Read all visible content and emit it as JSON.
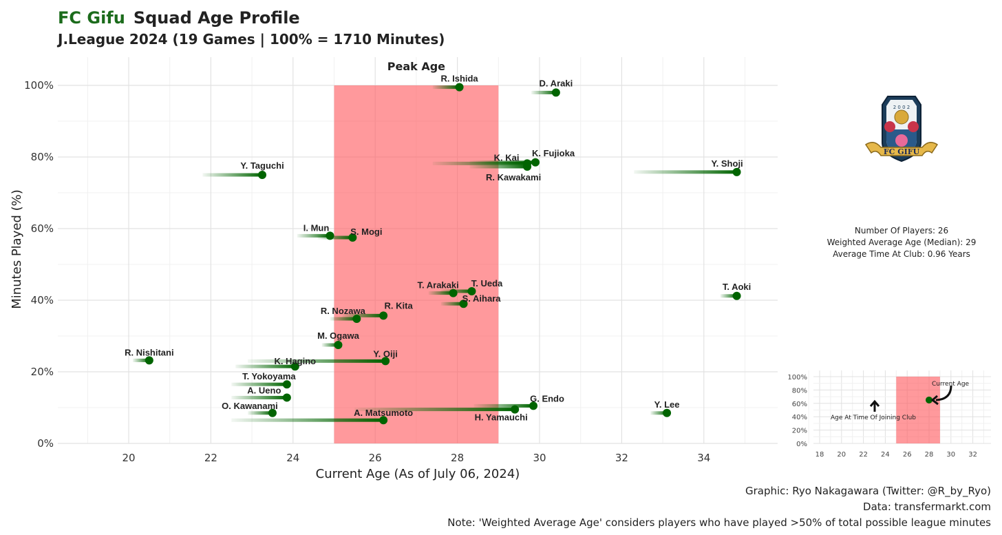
{
  "title": {
    "club": "FC Gifu",
    "text": "Squad Age Profile"
  },
  "subtitle": "J.League 2024 (19 Games | 100% = 1710 Minutes)",
  "peak_label": "Peak Age",
  "stats": {
    "num_players": "Number Of Players: 26",
    "weighted_avg": "Weighted Average Age (Median): 29",
    "avg_time": "Average Time At Club: 0.96 Years"
  },
  "caption": {
    "line1": "Graphic: Ryo Nakagawara (Twitter: @R_by_Ryo)",
    "line2": "Data: transfermarkt.com",
    "line3": "Note: 'Weighted Average Age' considers players who have played >50% of total possible league minutes"
  },
  "logo": {
    "text": "FC GIFU",
    "year": "2 0 0 2"
  },
  "colors": {
    "point": "#006400",
    "peak_band": "#ff5a5f",
    "club_title": "#1b6b1b"
  },
  "chart_data": {
    "type": "scatter",
    "xlabel": "Current Age (As of July 06, 2024)",
    "ylabel": "Minutes Played (%)",
    "xlim": [
      18.8,
      35.7
    ],
    "ylim": [
      0,
      100
    ],
    "xticks": [
      20,
      22,
      24,
      26,
      28,
      30,
      32,
      34
    ],
    "yticks": [
      0,
      20,
      40,
      60,
      80,
      100
    ],
    "ytick_labels": [
      "0%",
      "20%",
      "40%",
      "60%",
      "80%",
      "100%"
    ],
    "peak_age_range": [
      25,
      29
    ],
    "players": [
      {
        "name": "R. Ishida",
        "age": 28.05,
        "join_age": 27.4,
        "pct": 99.5
      },
      {
        "name": "D. Araki",
        "age": 30.4,
        "join_age": 29.8,
        "pct": 98
      },
      {
        "name": "K. Fujioka",
        "age": 29.9,
        "join_age": 28.3,
        "pct": 78.5
      },
      {
        "name": "K. Kai",
        "age": 29.7,
        "join_age": 27.4,
        "pct": 78.2
      },
      {
        "name": "R. Kawakami",
        "age": 29.7,
        "join_age": 28.3,
        "pct": 77.3
      },
      {
        "name": "Y. Taguchi",
        "age": 23.25,
        "join_age": 21.8,
        "pct": 75
      },
      {
        "name": "Y. Shoji",
        "age": 34.8,
        "join_age": 32.3,
        "pct": 75.8
      },
      {
        "name": "I. Mun",
        "age": 24.9,
        "join_age": 24.1,
        "pct": 58
      },
      {
        "name": "S. Mogi",
        "age": 25.45,
        "join_age": 24.6,
        "pct": 57.5
      },
      {
        "name": "T. Ueda",
        "age": 28.35,
        "join_age": 27.6,
        "pct": 42.5
      },
      {
        "name": "T. Arakaki",
        "age": 27.9,
        "join_age": 27.3,
        "pct": 42
      },
      {
        "name": "S. Aihara",
        "age": 28.15,
        "join_age": 27.6,
        "pct": 39
      },
      {
        "name": "T. Aoki",
        "age": 34.8,
        "join_age": 34.4,
        "pct": 41.2
      },
      {
        "name": "R. Kita",
        "age": 26.2,
        "join_age": 25.2,
        "pct": 35.7
      },
      {
        "name": "R. Nozawa",
        "age": 25.55,
        "join_age": 24.9,
        "pct": 34.8
      },
      {
        "name": "M. Ogawa",
        "age": 25.1,
        "join_age": 24.7,
        "pct": 27.5
      },
      {
        "name": "R. Nishitani",
        "age": 20.5,
        "join_age": 20.1,
        "pct": 23.2
      },
      {
        "name": "Y. Oiji",
        "age": 26.25,
        "join_age": 22.9,
        "pct": 23
      },
      {
        "name": "K. Hagino",
        "age": 24.05,
        "join_age": 22.6,
        "pct": 21.5
      },
      {
        "name": "T. Yokoyama",
        "age": 23.85,
        "join_age": 22.5,
        "pct": 16.5
      },
      {
        "name": "A. Ueno",
        "age": 23.85,
        "join_age": 22.5,
        "pct": 12.8
      },
      {
        "name": "G. Endo",
        "age": 29.85,
        "join_age": 28.4,
        "pct": 10.5
      },
      {
        "name": "Y. Lee",
        "age": 33.1,
        "join_age": 32.7,
        "pct": 8.5
      },
      {
        "name": "H. Yamauchi",
        "age": 29.4,
        "join_age": 25.5,
        "pct": 9.5
      },
      {
        "name": "O. Kawanami",
        "age": 23.5,
        "join_age": 22.9,
        "pct": 8.5
      },
      {
        "name": "A. Matsumoto",
        "age": 26.2,
        "join_age": 22.5,
        "pct": 6.5
      }
    ]
  },
  "inset": {
    "xticks": [
      18,
      20,
      22,
      24,
      26,
      28,
      30,
      32
    ],
    "ytick_labels": [
      "0%",
      "20%",
      "40%",
      "60%",
      "80%",
      "100%"
    ],
    "yticks": [
      0,
      20,
      40,
      60,
      80,
      100
    ],
    "xlim": [
      17.3,
      33.7
    ],
    "ylim": [
      0,
      100
    ],
    "peak_age_range": [
      25,
      29
    ],
    "example": {
      "age": 28,
      "join_age": 23,
      "pct": 65
    },
    "current_age_label": "Current Age",
    "joining_label": "Age At Time Of Joining Club"
  }
}
